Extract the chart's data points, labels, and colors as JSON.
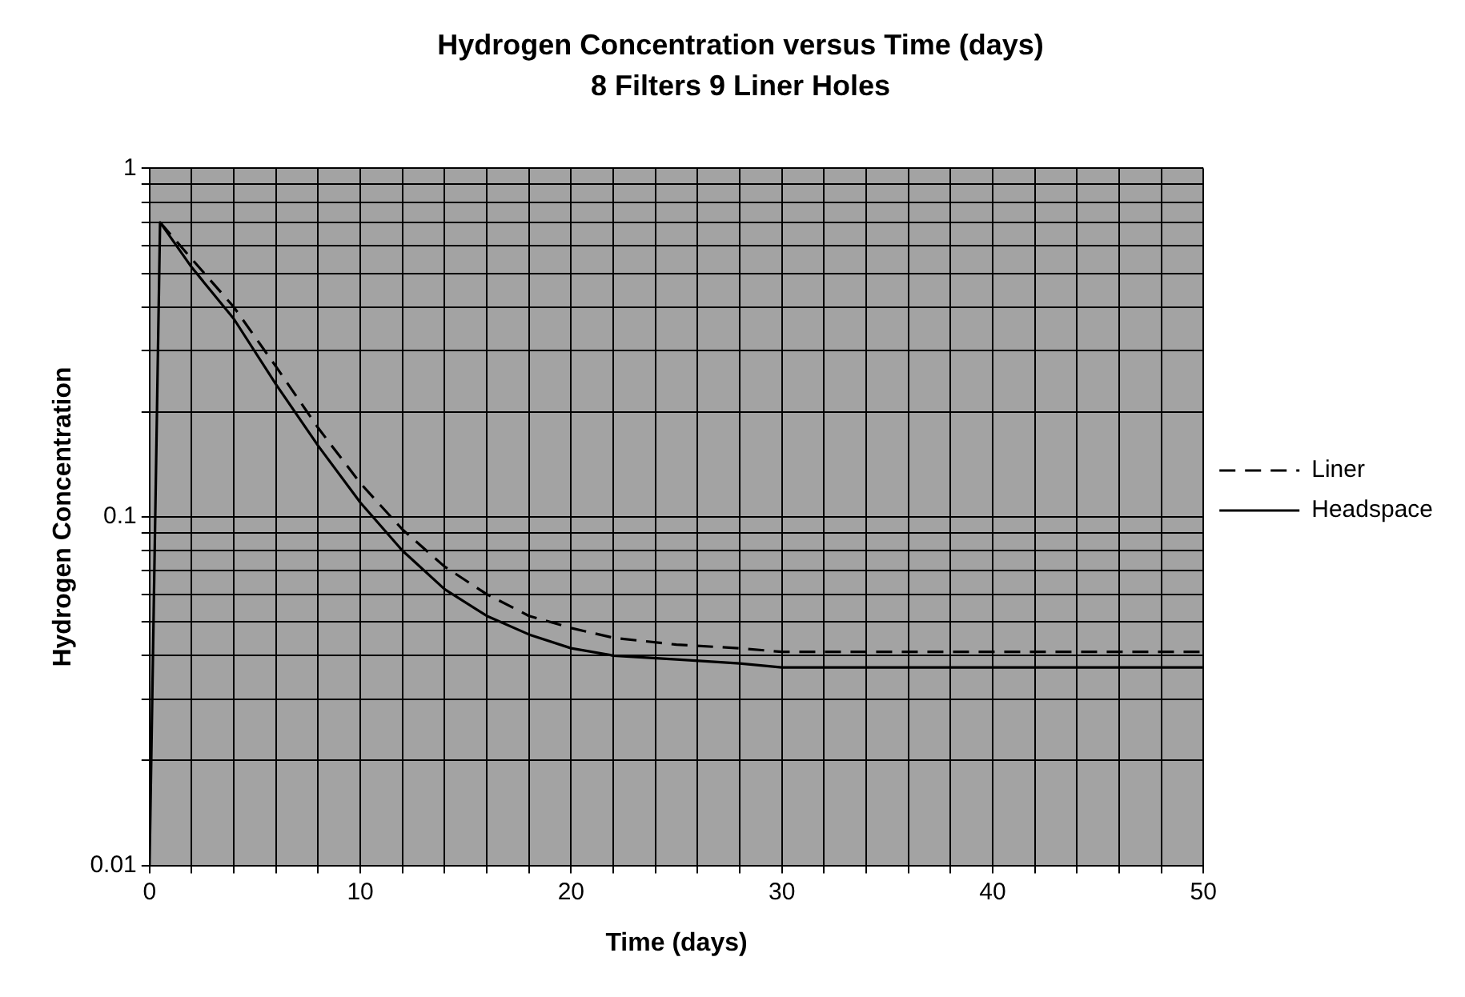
{
  "chart_data": {
    "type": "line",
    "title": "Hydrogen Concentration versus Time (days)",
    "subtitle": "8 Filters 9 Liner Holes",
    "xlabel": "Time (days)",
    "ylabel": "Hydrogen Concentration",
    "series": [
      {
        "name": "Liner",
        "color": "#000000",
        "line_style": "dashed",
        "x": [
          0.5,
          2,
          4,
          6,
          8,
          10,
          12,
          14,
          16,
          18,
          20,
          22,
          25,
          28,
          30,
          35,
          40,
          45,
          50
        ],
        "values": [
          0.7,
          0.55,
          0.4,
          0.27,
          0.18,
          0.125,
          0.092,
          0.072,
          0.06,
          0.052,
          0.048,
          0.045,
          0.043,
          0.042,
          0.041,
          0.041,
          0.041,
          0.041,
          0.041
        ]
      },
      {
        "name": "Headspace",
        "color": "#000000",
        "line_style": "solid",
        "x": [
          0,
          0.5,
          2,
          4,
          6,
          8,
          10,
          12,
          14,
          16,
          18,
          20,
          22,
          25,
          28,
          30,
          35,
          40,
          45,
          50
        ],
        "values": [
          0.01,
          0.7,
          0.52,
          0.37,
          0.24,
          0.16,
          0.11,
          0.08,
          0.062,
          0.052,
          0.046,
          0.042,
          0.04,
          0.039,
          0.038,
          0.037,
          0.037,
          0.037,
          0.037,
          0.037
        ]
      }
    ],
    "xlim": [
      0,
      50
    ],
    "xticks": [
      0,
      {
        "value": 2,
        "label": null
      },
      {
        "value": 4,
        "label": null
      },
      {
        "value": 6,
        "label": null
      },
      {
        "value": 8,
        "label": null
      },
      10,
      {
        "value": 12,
        "label": null
      },
      {
        "value": 14,
        "label": null
      },
      {
        "value": 16,
        "label": null
      },
      {
        "value": 18,
        "label": null
      },
      20,
      {
        "value": 22,
        "label": null
      },
      {
        "value": 24,
        "label": null
      },
      {
        "value": 26,
        "label": null
      },
      {
        "value": 28,
        "label": null
      },
      30,
      {
        "value": 32,
        "label": null
      },
      {
        "value": 34,
        "label": null
      },
      {
        "value": 36,
        "label": null
      },
      {
        "value": 38,
        "label": null
      },
      40,
      {
        "value": 42,
        "label": null
      },
      {
        "value": 44,
        "label": null
      },
      {
        "value": 46,
        "label": null
      },
      {
        "value": 48,
        "label": null
      },
      50
    ],
    "ylim": [
      0.01,
      1
    ],
    "yticks": [
      0.01,
      {
        "value": 0.02,
        "label": null
      },
      {
        "value": 0.03,
        "label": null
      },
      {
        "value": 0.04,
        "label": null
      },
      {
        "value": 0.05,
        "label": null
      },
      {
        "value": 0.06,
        "label": null
      },
      {
        "value": 0.07,
        "label": null
      },
      {
        "value": 0.08,
        "label": null
      },
      {
        "value": 0.09,
        "label": null
      },
      0.1,
      {
        "value": 0.2,
        "label": null
      },
      {
        "value": 0.3,
        "label": null
      },
      {
        "value": 0.4,
        "label": null
      },
      {
        "value": 0.5,
        "label": null
      },
      {
        "value": 0.6,
        "label": null
      },
      {
        "value": 0.7,
        "label": null
      },
      {
        "value": 0.8,
        "label": null
      },
      {
        "value": 0.9,
        "label": null
      },
      1
    ],
    "log": "y",
    "grid": true,
    "legend": "right",
    "marker": "none"
  }
}
